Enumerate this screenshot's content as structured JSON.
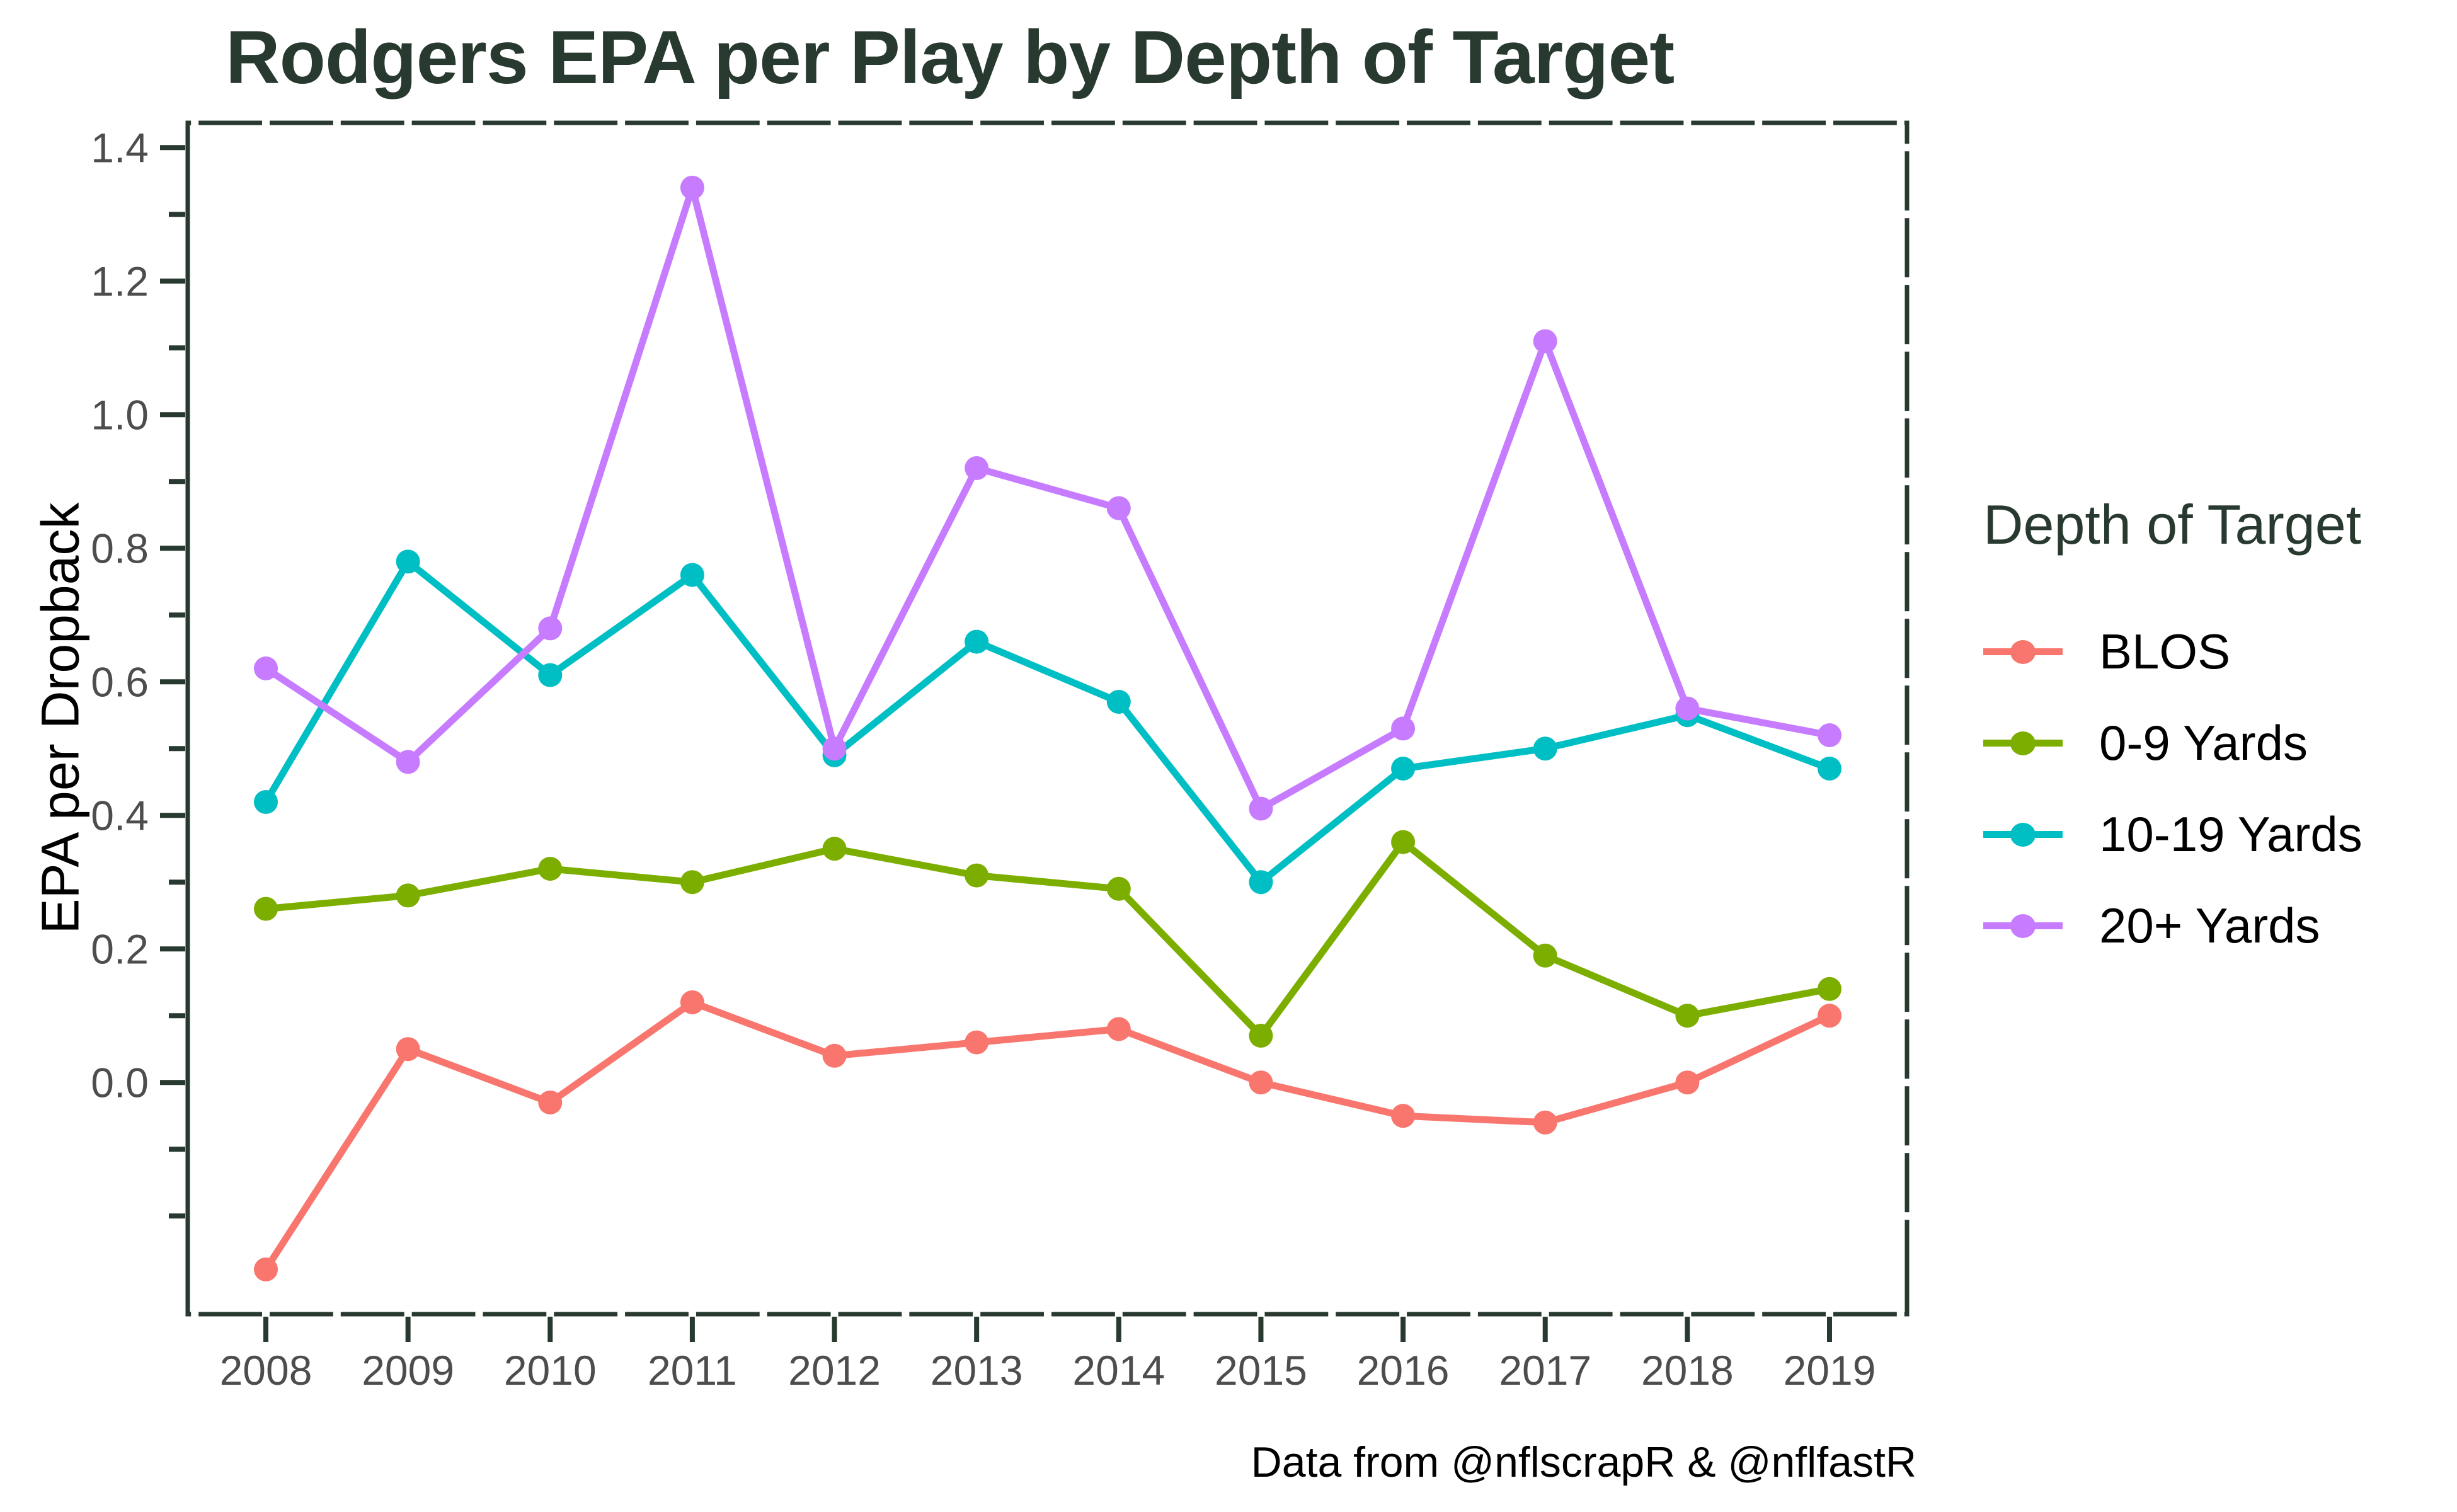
{
  "title": "Rodgers EPA per Play by Depth of Target",
  "caption": "Data from @nflscrapR & @nflfastR",
  "axes": {
    "y_title": "EPA per Dropback",
    "y_tick_labels": [
      "1.4",
      "1.2",
      "1.0",
      "0.8",
      "0.6",
      "0.4",
      "0.2",
      "0.0"
    ],
    "x_tick_labels": [
      "2008",
      "2009",
      "2010",
      "2011",
      "2012",
      "2013",
      "2014",
      "2015",
      "2016",
      "2017",
      "2018",
      "2019"
    ],
    "tick_label_color": "#4d4d4d",
    "axis_line_color": "#28392f"
  },
  "legend": {
    "title": "Depth of Target",
    "items": [
      {
        "label": "BLOS",
        "color": "#F8766D"
      },
      {
        "label": "0-9 Yards",
        "color": "#7CAE00"
      },
      {
        "label": "10-19 Yards",
        "color": "#00BFC4"
      },
      {
        "label": "20+ Yards",
        "color": "#C77CFF"
      }
    ]
  },
  "chart_data": {
    "type": "line",
    "title": "Rodgers EPA per Play by Depth of Target",
    "xlabel": "",
    "ylabel": "EPA per Dropback",
    "x": [
      2008,
      2009,
      2010,
      2011,
      2012,
      2013,
      2014,
      2015,
      2016,
      2017,
      2018,
      2019
    ],
    "series": [
      {
        "name": "BLOS",
        "color": "#F8766D",
        "values": [
          -0.28,
          0.05,
          -0.03,
          0.12,
          0.04,
          0.06,
          0.08,
          0.0,
          -0.05,
          -0.06,
          0.0,
          0.1
        ]
      },
      {
        "name": "0-9 Yards",
        "color": "#7CAE00",
        "values": [
          0.26,
          0.28,
          0.32,
          0.3,
          0.35,
          0.31,
          0.29,
          0.07,
          0.36,
          0.19,
          0.1,
          0.14
        ]
      },
      {
        "name": "10-19 Yards",
        "color": "#00BFC4",
        "values": [
          0.42,
          0.78,
          0.61,
          0.76,
          0.49,
          0.66,
          0.57,
          0.3,
          0.47,
          0.5,
          0.55,
          0.47
        ]
      },
      {
        "name": "20+ Yards",
        "color": "#C77CFF",
        "values": [
          0.62,
          0.48,
          0.68,
          1.34,
          0.5,
          0.92,
          0.86,
          0.41,
          0.53,
          1.11,
          0.56,
          0.52
        ]
      }
    ],
    "ylim": [
      -0.347,
      1.437
    ],
    "y_ticks_labeled": [
      1.4,
      1.2,
      1.0,
      0.8,
      0.6,
      0.4,
      0.2,
      0.0
    ],
    "y_ticks_minor": [
      1.3,
      1.1,
      0.9,
      0.7,
      0.5,
      0.3,
      0.1,
      -0.1,
      -0.2
    ],
    "x_ticks_labeled": [
      2008,
      2009,
      2010,
      2011,
      2012,
      2013,
      2014,
      2015,
      2016,
      2017,
      2018,
      2019
    ],
    "x_ticks_minor": [
      2007.5,
      2008.5,
      2009.5,
      2010.5,
      2011.5,
      2012.5,
      2013.5,
      2014.5,
      2015.5,
      2016.5,
      2017.5,
      2018.5,
      2019.5
    ],
    "grid": false,
    "legend_position": "right"
  }
}
